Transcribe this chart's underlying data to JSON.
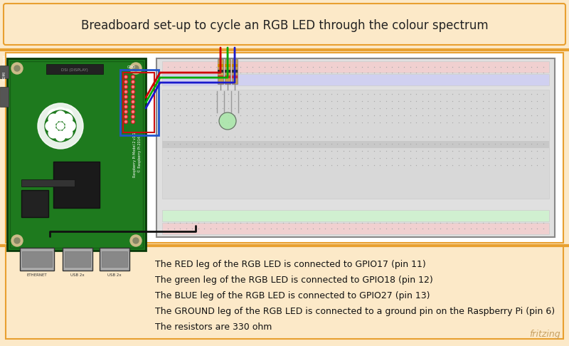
{
  "title": "Breadboard set-up to cycle an RGB LED through the colour spectrum",
  "title_fontsize": 12,
  "bg_color": "#fce9c8",
  "border_color": "#e8a030",
  "main_bg": "#ffffff",
  "text_lines": [
    "The RED leg of the RGB LED is connected to GPIO17 (pin 11)",
    "The green leg of the RGB LED is connected to GPIO18 (pin 12)",
    "The BLUE leg of the RGB LED is connected to GPIO27 (pin 13)",
    "The GROUND leg of the RGB LED is connected to a ground pin on the Raspberry Pi (pin 6)",
    "The resistors are 330 ohm"
  ],
  "text_bold_words": [
    "RED",
    "green",
    "BLUE",
    "GROUND"
  ],
  "text_fontsize": 9,
  "watermark": "fritzing",
  "watermark_color": "#c8a060",
  "rpi_color": "#1e7a1e",
  "rpi_dark": "#155015",
  "breadboard_color": "#e0e0e0",
  "wire_red": "#cc0000",
  "wire_green": "#00aa00",
  "wire_blue": "#1a1acc",
  "wire_black": "#111111",
  "top_border_color": "#e8a030",
  "panel_bg": "#fce9c8"
}
